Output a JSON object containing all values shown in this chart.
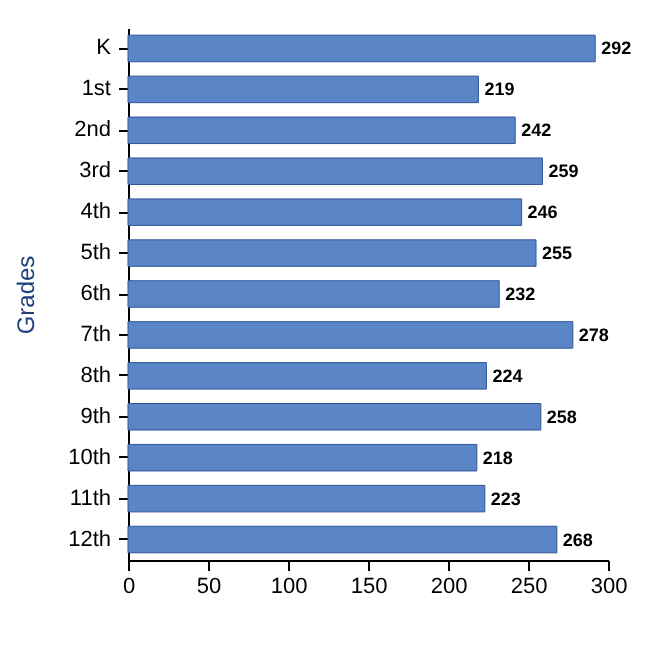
{
  "chart_data": {
    "type": "bar",
    "orientation": "horizontal",
    "ylabel": "Grades",
    "categories": [
      "K",
      "1st",
      "2nd",
      "3rd",
      "4th",
      "5th",
      "6th",
      "7th",
      "8th",
      "9th",
      "10th",
      "11th",
      "12th"
    ],
    "values": [
      292,
      219,
      242,
      259,
      246,
      255,
      232,
      278,
      224,
      258,
      218,
      223,
      268
    ],
    "color": "#5a86c8",
    "xlim": [
      0,
      300
    ],
    "xticks": [
      0,
      50,
      100,
      150,
      200,
      250,
      300
    ],
    "data_labels": true,
    "grid": false
  }
}
